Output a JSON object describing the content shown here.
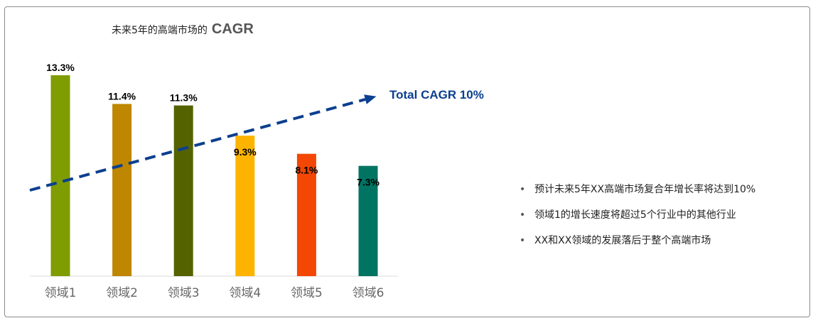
{
  "colors": {
    "trend": "#0b3f8f",
    "axis": "#d9d9d9",
    "bars": [
      "#7f9c00",
      "#bf8600",
      "#546200",
      "#fdb400",
      "#f34703",
      "#007462"
    ]
  },
  "title": {
    "text": "未来5年的高端市场的",
    "emphasis": "CAGR"
  },
  "chart_data": {
    "type": "bar",
    "title": "未来5年的高端市场的 CAGR",
    "categories": [
      "领域1",
      "领域2",
      "领域3",
      "领域4",
      "领域5",
      "领域6"
    ],
    "values": [
      13.3,
      11.4,
      11.3,
      9.3,
      8.1,
      7.3
    ],
    "value_labels": [
      "13.3%",
      "11.4%",
      "11.3%",
      "9.3%",
      "8.1%",
      "7.3%"
    ],
    "ylim": [
      0,
      13.3
    ],
    "grid": false,
    "annotation": "Total CAGR 10%"
  },
  "notes": [
    "预计未来5年XX高端市场复合年增长率将达到10%",
    "领域1的增长速度将超过5个行业中的其他行业",
    "XX和XX领域的发展落后于整个高端市场"
  ]
}
